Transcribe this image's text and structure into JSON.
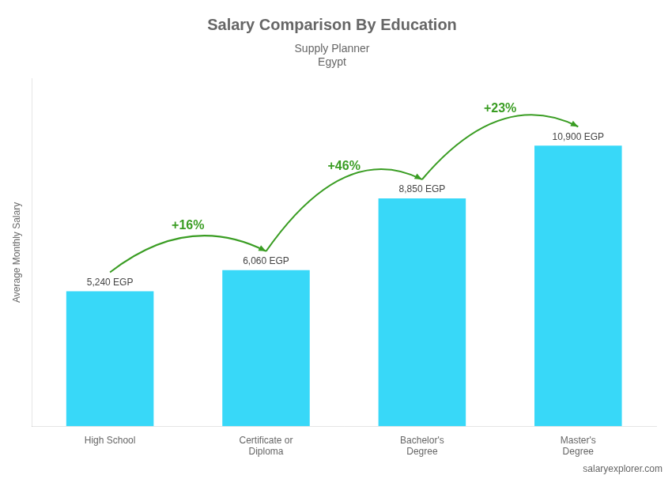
{
  "chart_data": {
    "type": "bar",
    "title": "Salary Comparison By Education",
    "subtitle": [
      "Supply Planner",
      "Egypt"
    ],
    "caption": "salaryexplorer.com",
    "ylabel": "Average Monthly Salary",
    "categories": [
      "High School",
      "Certificate or\nDiploma",
      "Bachelor's\nDegree",
      "Master's\nDegree"
    ],
    "values": [
      5240,
      6060,
      8850,
      10900
    ],
    "value_labels": [
      "5,240 EGP",
      "6,060 EGP",
      "8,850 EGP",
      "10,900 EGP"
    ],
    "annotations": [
      "+16%",
      "+46%",
      "+23%"
    ],
    "color": "#38d8f8",
    "ylim": [
      0,
      13500
    ],
    "grid": false,
    "data_labels": true,
    "tick_labels": "x"
  }
}
